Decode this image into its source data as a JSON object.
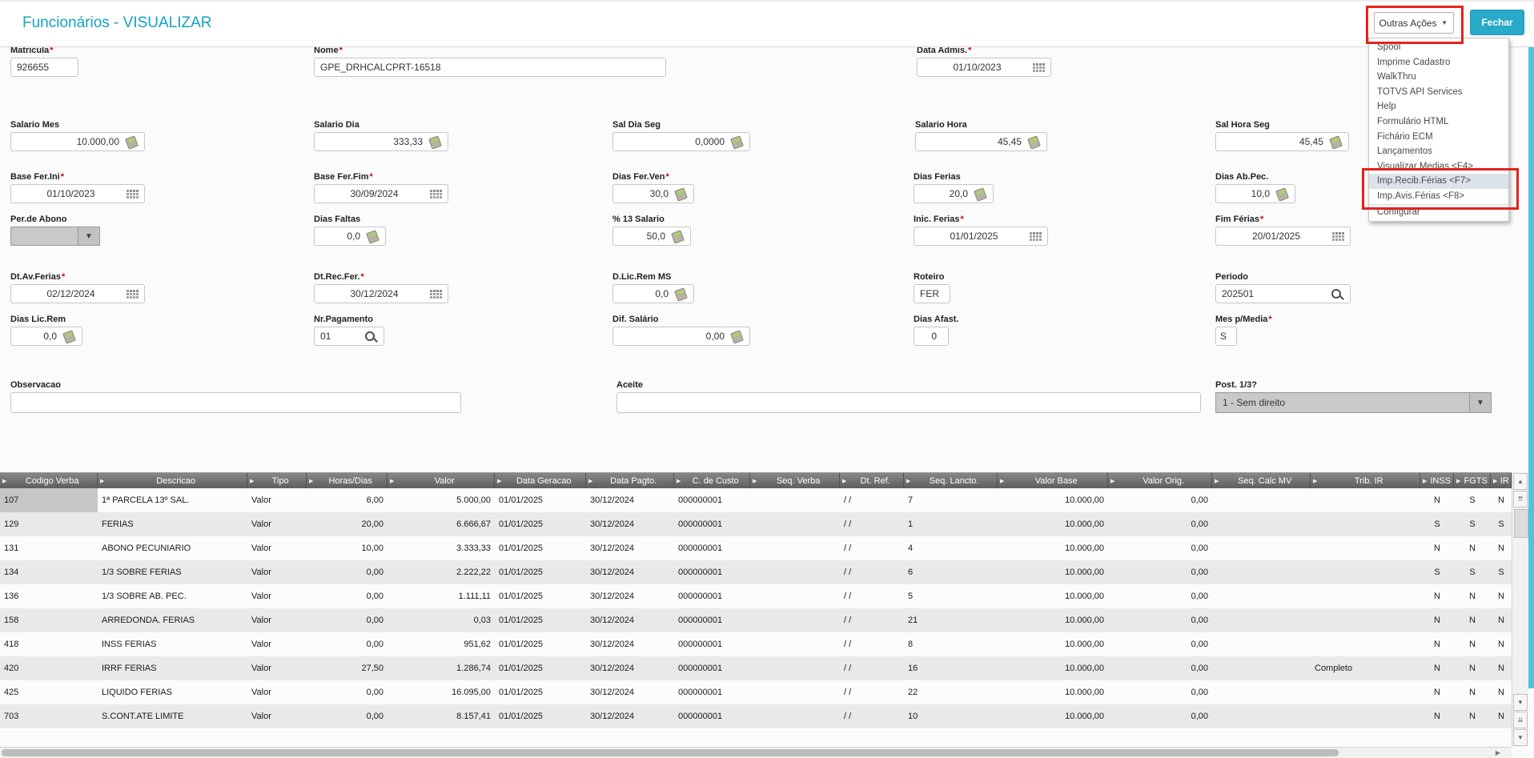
{
  "ui": {
    "required_marker": "*"
  },
  "icons": [
    "calculator-icon",
    "calendar-icon",
    "search-icon",
    "chevron-down-icon",
    "sort-arrow-icon"
  ],
  "colors": {
    "accent_teal": "#14a1c6",
    "button_teal": "#28aac9",
    "annotation_red": "#e3231b",
    "grid_header_gray": "#6e6e6e",
    "row_alt_gray": "#e9e9e9"
  },
  "header": {
    "title": "Funcionários - VISUALIZAR",
    "outras_acoes_label": "Outras Ações",
    "fechar_label": "Fechar"
  },
  "menu": {
    "highlighted_index": 9,
    "items": [
      "Spool",
      "Imprime Cadastro",
      "WalkThru",
      "TOTVS API Services",
      "Help",
      "Formulário HTML",
      "Fichário ECM",
      "Lançamentos",
      "Visualizar Medias <F4>...",
      "Imp.Recib.Férias <F7>",
      "Imp.Avis.Férias <F8>",
      "Configurar"
    ]
  },
  "form": {
    "matricula": {
      "label": "Matricula",
      "required": true,
      "value": "926655"
    },
    "nome": {
      "label": "Nome",
      "required": true,
      "value": "GPE_DRHCALCPRT-16518"
    },
    "data_admis": {
      "label": "Data Admis.",
      "required": true,
      "value": "01/10/2023"
    },
    "salario_mes": {
      "label": "Salario Mes",
      "value": "10.000,00"
    },
    "salario_dia": {
      "label": "Salario Dia",
      "value": "333,33"
    },
    "sal_dia_seg": {
      "label": "Sal Dia Seg",
      "value": "0,0000"
    },
    "salario_hora": {
      "label": "Salario Hora",
      "value": "45,45"
    },
    "sal_hora_seg": {
      "label": "Sal Hora Seg",
      "value": "45,45"
    },
    "base_fer_ini": {
      "label": "Base Fer.Ini",
      "required": true,
      "value": "01/10/2023"
    },
    "base_fer_fim": {
      "label": "Base Fer.Fim",
      "required": true,
      "value": "30/09/2024"
    },
    "dias_fer_ven": {
      "label": "Dias Fer.Ven",
      "required": true,
      "value": "30,0"
    },
    "dias_ferias": {
      "label": "Dias Ferias",
      "value": "20,0"
    },
    "dias_ab_pec": {
      "label": "Dias Ab.Pec.",
      "value": "10,0"
    },
    "per_de_abono": {
      "label": "Per.de Abono",
      "value": ""
    },
    "dias_faltas": {
      "label": "Dias Faltas",
      "value": "0,0"
    },
    "pct_13_salario": {
      "label": "% 13 Salario",
      "value": "50,0"
    },
    "inic_ferias": {
      "label": "Inic. Ferias",
      "required": true,
      "value": "01/01/2025"
    },
    "fim_ferias": {
      "label": "Fim Férias",
      "required": true,
      "value": "20/01/2025"
    },
    "dt_av_ferias": {
      "label": "Dt.Av.Ferias",
      "required": true,
      "value": "02/12/2024"
    },
    "dt_rec_fer": {
      "label": "Dt.Rec.Fer.",
      "required": true,
      "value": "30/12/2024"
    },
    "d_lic_rem_ms": {
      "label": "D.Lic.Rem MS",
      "value": "0,0"
    },
    "roteiro": {
      "label": "Roteiro",
      "value": "FER"
    },
    "periodo": {
      "label": "Periodo",
      "value": "202501"
    },
    "dias_lic_rem": {
      "label": "Dias Lic.Rem",
      "value": "0,0"
    },
    "nr_pagamento": {
      "label": "Nr.Pagamento",
      "value": "01"
    },
    "dif_salario": {
      "label": "Dif. Salário",
      "value": "0,00"
    },
    "dias_afast": {
      "label": "Dias Afast.",
      "value": "0"
    },
    "mes_p_media": {
      "label": "Mes p/Media",
      "required": true,
      "value": "S"
    },
    "observacao": {
      "label": "Observacao",
      "value": ""
    },
    "aceite": {
      "label": "Aceite",
      "value": ""
    },
    "post_13": {
      "label": "Post. 1/3?",
      "value": "1 - Sem direito"
    }
  },
  "table": {
    "columns": [
      "Codigo Verba",
      "Descricao",
      "Tipo",
      "Horas/Dias",
      "Valor",
      "Data Geracao",
      "Data Pagto.",
      "C. de Custo",
      "Seq. Verba",
      "Dt. Ref.",
      "Seq. Lancto.",
      "Valor Base",
      "Valor Orig.",
      "Seq. Calc MV",
      "Trib. IR",
      "INSS",
      "FGTS",
      "IR"
    ],
    "rows": [
      [
        "107",
        "1ª PARCELA 13º SAL.",
        "Valor",
        "6,00",
        "5.000,00",
        "01/01/2025",
        "30/12/2024",
        "000000001",
        "",
        "/ /",
        "7",
        "10.000,00",
        "0,00",
        "",
        "",
        "N",
        "S",
        "N"
      ],
      [
        "129",
        "FERIAS",
        "Valor",
        "20,00",
        "6.666,67",
        "01/01/2025",
        "30/12/2024",
        "000000001",
        "",
        "/ /",
        "1",
        "10.000,00",
        "0,00",
        "",
        "",
        "S",
        "S",
        "S"
      ],
      [
        "131",
        "ABONO PECUNIARIO",
        "Valor",
        "10,00",
        "3.333,33",
        "01/01/2025",
        "30/12/2024",
        "000000001",
        "",
        "/ /",
        "4",
        "10.000,00",
        "0,00",
        "",
        "",
        "N",
        "N",
        "N"
      ],
      [
        "134",
        "1/3 SOBRE FERIAS",
        "Valor",
        "0,00",
        "2.222,22",
        "01/01/2025",
        "30/12/2024",
        "000000001",
        "",
        "/ /",
        "6",
        "10.000,00",
        "0,00",
        "",
        "",
        "S",
        "S",
        "S"
      ],
      [
        "136",
        "1/3 SOBRE AB. PEC.",
        "Valor",
        "0,00",
        "1.111,11",
        "01/01/2025",
        "30/12/2024",
        "000000001",
        "",
        "/ /",
        "5",
        "10.000,00",
        "0,00",
        "",
        "",
        "N",
        "N",
        "N"
      ],
      [
        "158",
        "ARREDONDA. FERIAS",
        "Valor",
        "0,00",
        "0,03",
        "01/01/2025",
        "30/12/2024",
        "000000001",
        "",
        "/ /",
        "21",
        "10.000,00",
        "0,00",
        "",
        "",
        "N",
        "N",
        "N"
      ],
      [
        "418",
        "INSS FERIAS",
        "Valor",
        "0,00",
        "951,62",
        "01/01/2025",
        "30/12/2024",
        "000000001",
        "",
        "/ /",
        "8",
        "10.000,00",
        "0,00",
        "",
        "",
        "N",
        "N",
        "N"
      ],
      [
        "420",
        "IRRF FERIAS",
        "Valor",
        "27,50",
        "1.286,74",
        "01/01/2025",
        "30/12/2024",
        "000000001",
        "",
        "/ /",
        "16",
        "10.000,00",
        "0,00",
        "",
        "Completo",
        "N",
        "N",
        "N"
      ],
      [
        "425",
        "LIQUIDO FERIAS",
        "Valor",
        "0,00",
        "16.095,00",
        "01/01/2025",
        "30/12/2024",
        "000000001",
        "",
        "/ /",
        "22",
        "10.000,00",
        "0,00",
        "",
        "",
        "N",
        "N",
        "N"
      ],
      [
        "703",
        "S.CONT.ATE LIMITE",
        "Valor",
        "0,00",
        "8.157,41",
        "01/01/2025",
        "30/12/2024",
        "000000001",
        "",
        "/ /",
        "10",
        "10.000,00",
        "0,00",
        "",
        "",
        "N",
        "N",
        "N"
      ]
    ]
  }
}
